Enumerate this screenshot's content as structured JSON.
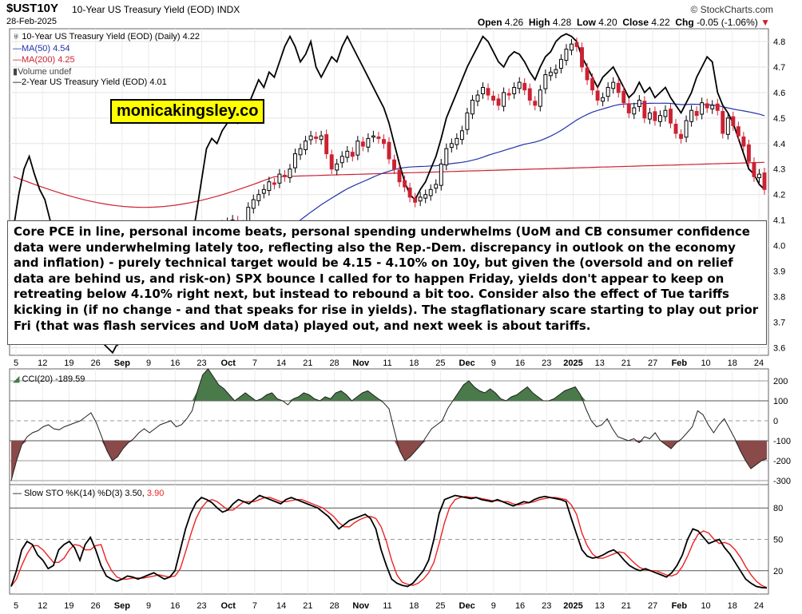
{
  "header": {
    "symbol": "$UST10Y",
    "description": "10-Year US Treasury Yield (EOD)",
    "exchange": "INDX",
    "date": "28-Feb-2025",
    "brand": "© StockCharts.com",
    "open_label": "Open",
    "open": "4.26",
    "high_label": "High",
    "high": "4.28",
    "low_label": "Low",
    "low": "4.20",
    "close_label": "Close",
    "close": "4.22",
    "chg_label": "Chg",
    "chg": "-0.05 (-1.06%)"
  },
  "legend": {
    "main": "10-Year US Treasury Yield (EOD) (Daily) 4.22",
    "ma50": "MA(50) 4.54",
    "ma200": "MA(200) 4.25",
    "volume": "Volume undef",
    "two_year": "2-Year US Treasury Yield (EOD) 4.01"
  },
  "watermark": "monicakingsley.co",
  "annotation": "Core PCE in line, personal income beats, personal spending underwhelms (UoM and CB consumer confidence data were underwhelming lately too, reflecting also the Rep.-Dem. discrepancy in outlook on the economy and inflation) - purely technical target would be 4.15 - 4.10% on 10y, but given the (oversold and on relief data are behind us, and risk-on) SPX bounce I called for to happen Friday, yields don't appear to keep on retreating below 4.10% right next, but instead to rebound a bit too. Consider also the effect of Tue tariffs kicking in (if no change - and that speaks for rise in yields). The stagflationary scare starting to play out prior Fri (that was flash services and UoM data) played out, and next week is about tariffs.",
  "indicators": {
    "cci_label": "CCI(20) -189.59",
    "sto_label_a": "Slow STO %K(14) %D(3) 3.50,",
    "sto_label_b": "3.90"
  },
  "colors": {
    "up": "#000000",
    "down": "#cc2233",
    "ma50": "#2233aa",
    "ma200": "#cc2233",
    "two_year": "#000000",
    "cci_pos": "#4a7a4a",
    "cci_neg": "#8a4a4a",
    "sto_k": "#000000",
    "sto_d": "#ee2222"
  },
  "chart_data": [
    {
      "type": "candlestick",
      "name": "10-Year US Treasury Yield (EOD) (Daily)",
      "y_ticks": [
        "4.8",
        "4.7",
        "4.6",
        "4.5",
        "4.4",
        "4.3",
        "4.2",
        "4.1",
        "4.0",
        "3.9",
        "3.8",
        "3.7",
        "3.6"
      ],
      "ylim": [
        3.57,
        4.85
      ],
      "x_tick_labels": [
        "5",
        "12",
        "19",
        "26",
        "Sep",
        "9",
        "16",
        "23",
        "Oct",
        "7",
        "14",
        "21",
        "28",
        "Nov",
        "11",
        "18",
        "25",
        "Dec",
        "9",
        "16",
        "23",
        "2025",
        "13",
        "21",
        "27",
        "Feb",
        "10",
        "18",
        "24"
      ],
      "closes": [
        3.91,
        3.88,
        3.87,
        3.83,
        3.8,
        3.79,
        3.86,
        3.88,
        3.85,
        3.81,
        3.8,
        3.79,
        3.82,
        3.81,
        3.78,
        3.74,
        3.72,
        3.68,
        3.66,
        3.63,
        3.64,
        3.65,
        3.69,
        3.71,
        3.7,
        3.73,
        3.72,
        3.74,
        3.78,
        3.79,
        3.78,
        3.75,
        3.78,
        3.81,
        3.86,
        3.96,
        4.02,
        4.03,
        4.07,
        4.05,
        4.08,
        4.09,
        4.1,
        4.07,
        4.08,
        4.15,
        4.18,
        4.2,
        4.22,
        4.25,
        4.24,
        4.28,
        4.27,
        4.3,
        4.36,
        4.38,
        4.41,
        4.43,
        4.42,
        4.43,
        4.36,
        4.3,
        4.32,
        4.35,
        4.37,
        4.35,
        4.41,
        4.39,
        4.42,
        4.43,
        4.42,
        4.4,
        4.34,
        4.3,
        4.25,
        4.23,
        4.19,
        4.17,
        4.19,
        4.2,
        4.22,
        4.24,
        4.32,
        4.38,
        4.4,
        4.42,
        4.45,
        4.52,
        4.57,
        4.59,
        4.62,
        4.59,
        4.57,
        4.55,
        4.6,
        4.59,
        4.62,
        4.64,
        4.61,
        4.57,
        4.55,
        4.61,
        4.67,
        4.68,
        4.69,
        4.73,
        4.77,
        4.79,
        4.78,
        4.7,
        4.65,
        4.61,
        4.57,
        4.58,
        4.62,
        4.64,
        4.6,
        4.56,
        4.52,
        4.54,
        4.57,
        4.5,
        4.52,
        4.49,
        4.51,
        4.53,
        4.48,
        4.44,
        4.42,
        4.49,
        4.53,
        4.51,
        4.56,
        4.54,
        4.55,
        4.53,
        4.44,
        4.5,
        4.47,
        4.43,
        4.39,
        4.33,
        4.27,
        4.28,
        4.22
      ],
      "two_year": [
        4.07,
        4.2,
        4.3,
        4.35,
        4.28,
        4.22,
        4.18,
        4.1,
        4.05,
        4.0,
        3.95,
        3.9,
        3.88,
        3.82,
        3.78,
        3.7,
        3.65,
        3.62,
        3.6,
        3.58,
        3.62,
        3.66,
        3.7,
        3.74,
        3.72,
        3.76,
        3.75,
        3.78,
        3.8,
        3.83,
        3.8,
        3.77,
        3.82,
        3.9,
        4.0,
        4.12,
        4.25,
        4.38,
        4.42,
        4.4,
        4.45,
        4.48,
        4.52,
        4.48,
        4.5,
        4.55,
        4.6,
        4.65,
        4.62,
        4.68,
        4.66,
        4.72,
        4.78,
        4.82,
        4.78,
        4.72,
        4.75,
        4.8,
        4.7,
        4.66,
        4.7,
        4.74,
        4.72,
        4.78,
        4.82,
        4.78,
        4.74,
        4.7,
        4.66,
        4.62,
        4.58,
        4.54,
        4.48,
        4.4,
        4.32,
        4.25,
        4.2,
        4.18,
        4.22,
        4.25,
        4.3,
        4.35,
        4.42,
        4.5,
        4.55,
        4.6,
        4.65,
        4.7,
        4.74,
        4.78,
        4.82,
        4.8,
        4.76,
        4.72,
        4.7,
        4.74,
        4.76,
        4.75,
        4.72,
        4.68,
        4.65,
        4.7,
        4.74,
        4.76,
        4.8,
        4.82,
        4.83,
        4.82,
        4.8,
        4.74,
        4.7,
        4.66,
        4.62,
        4.66,
        4.68,
        4.7,
        4.66,
        4.62,
        4.58,
        4.6,
        4.64,
        4.6,
        4.62,
        4.58,
        4.6,
        4.62,
        4.58,
        4.55,
        4.52,
        4.56,
        4.6,
        4.66,
        4.7,
        4.74,
        4.72,
        4.6,
        4.55,
        4.52,
        4.48,
        4.42,
        4.36,
        4.3,
        4.28,
        4.24,
        4.22
      ]
    },
    {
      "type": "line",
      "name": "CCI(20)",
      "y_ticks": [
        "200",
        "100",
        "0",
        "-100",
        "-200",
        "-300"
      ],
      "ylim": [
        -320,
        260
      ],
      "values": [
        -300,
        -200,
        -120,
        -80,
        -60,
        -50,
        -30,
        -20,
        -40,
        -45,
        -30,
        -20,
        -10,
        0,
        20,
        40,
        -10,
        -80,
        -150,
        -200,
        -180,
        -140,
        -110,
        -90,
        -60,
        -40,
        -60,
        -40,
        -20,
        -10,
        0,
        -30,
        -20,
        10,
        50,
        150,
        230,
        260,
        220,
        180,
        160,
        130,
        100,
        120,
        140,
        120,
        100,
        110,
        130,
        140,
        110,
        100,
        80,
        110,
        120,
        140,
        130,
        110,
        100,
        120,
        110,
        140,
        150,
        130,
        100,
        120,
        140,
        150,
        130,
        110,
        90,
        60,
        -50,
        -150,
        -200,
        -180,
        -150,
        -120,
        -80,
        -40,
        -20,
        0,
        60,
        100,
        140,
        180,
        200,
        170,
        150,
        140,
        160,
        140,
        110,
        100,
        120,
        130,
        150,
        170,
        140,
        120,
        100,
        100,
        110,
        130,
        150,
        160,
        170,
        130,
        60,
        0,
        -30,
        -20,
        10,
        -40,
        -80,
        -90,
        -100,
        -90,
        -110,
        -80,
        -90,
        -60,
        -100,
        -120,
        -140,
        -110,
        -90,
        -60,
        -30,
        50,
        30,
        -20,
        -60,
        -20,
        10,
        -40,
        -90,
        -150,
        -200,
        -240,
        -220,
        -200,
        -190
      ]
    },
    {
      "type": "line",
      "name": "Slow STO %K(14) %D(3)",
      "y_ticks": [
        "80",
        "50",
        "20"
      ],
      "ylim": [
        0,
        100
      ],
      "k": [
        5,
        20,
        40,
        48,
        45,
        35,
        30,
        22,
        25,
        40,
        45,
        48,
        42,
        30,
        45,
        52,
        40,
        25,
        15,
        12,
        10,
        12,
        15,
        14,
        12,
        14,
        16,
        18,
        15,
        12,
        14,
        20,
        40,
        60,
        75,
        85,
        90,
        88,
        85,
        80,
        76,
        78,
        84,
        88,
        86,
        84,
        88,
        92,
        90,
        88,
        86,
        84,
        88,
        90,
        88,
        86,
        84,
        82,
        80,
        76,
        72,
        66,
        60,
        64,
        68,
        70,
        72,
        74,
        70,
        60,
        40,
        25,
        12,
        8,
        6,
        5,
        8,
        14,
        20,
        30,
        50,
        75,
        88,
        90,
        92,
        91,
        90,
        89,
        90,
        88,
        87,
        86,
        88,
        86,
        84,
        82,
        84,
        86,
        85,
        88,
        90,
        91,
        90,
        89,
        88,
        86,
        70,
        55,
        40,
        34,
        32,
        33,
        35,
        38,
        40,
        36,
        30,
        25,
        22,
        20,
        22,
        20,
        18,
        16,
        14,
        18,
        25,
        35,
        50,
        60,
        58,
        52,
        46,
        48,
        50,
        42,
        36,
        28,
        20,
        12,
        8,
        5,
        4,
        3.5
      ],
      "d": [
        5,
        12,
        25,
        36,
        44,
        44,
        40,
        34,
        28,
        28,
        32,
        40,
        45,
        44,
        40,
        40,
        44,
        45,
        30,
        20,
        14,
        12,
        12,
        13,
        13,
        13,
        14,
        15,
        16,
        15,
        14,
        15,
        22,
        38,
        55,
        70,
        80,
        86,
        88,
        86,
        82,
        78,
        78,
        82,
        86,
        86,
        86,
        88,
        90,
        90,
        88,
        86,
        86,
        87,
        88,
        88,
        86,
        84,
        82,
        80,
        76,
        72,
        66,
        62,
        62,
        66,
        69,
        71,
        72,
        70,
        62,
        48,
        30,
        16,
        9,
        7,
        6,
        8,
        12,
        18,
        28,
        46,
        66,
        81,
        88,
        90,
        91,
        90,
        90,
        89,
        88,
        87,
        87,
        86,
        86,
        84,
        83,
        84,
        85,
        86,
        88,
        89,
        90,
        90,
        89,
        88,
        83,
        74,
        56,
        44,
        36,
        32,
        32,
        34,
        36,
        38,
        37,
        32,
        27,
        23,
        21,
        20,
        20,
        18,
        16,
        15,
        17,
        24,
        34,
        46,
        55,
        58,
        56,
        50,
        46,
        47,
        45,
        40,
        33,
        24,
        16,
        10,
        6,
        3.9
      ]
    }
  ]
}
